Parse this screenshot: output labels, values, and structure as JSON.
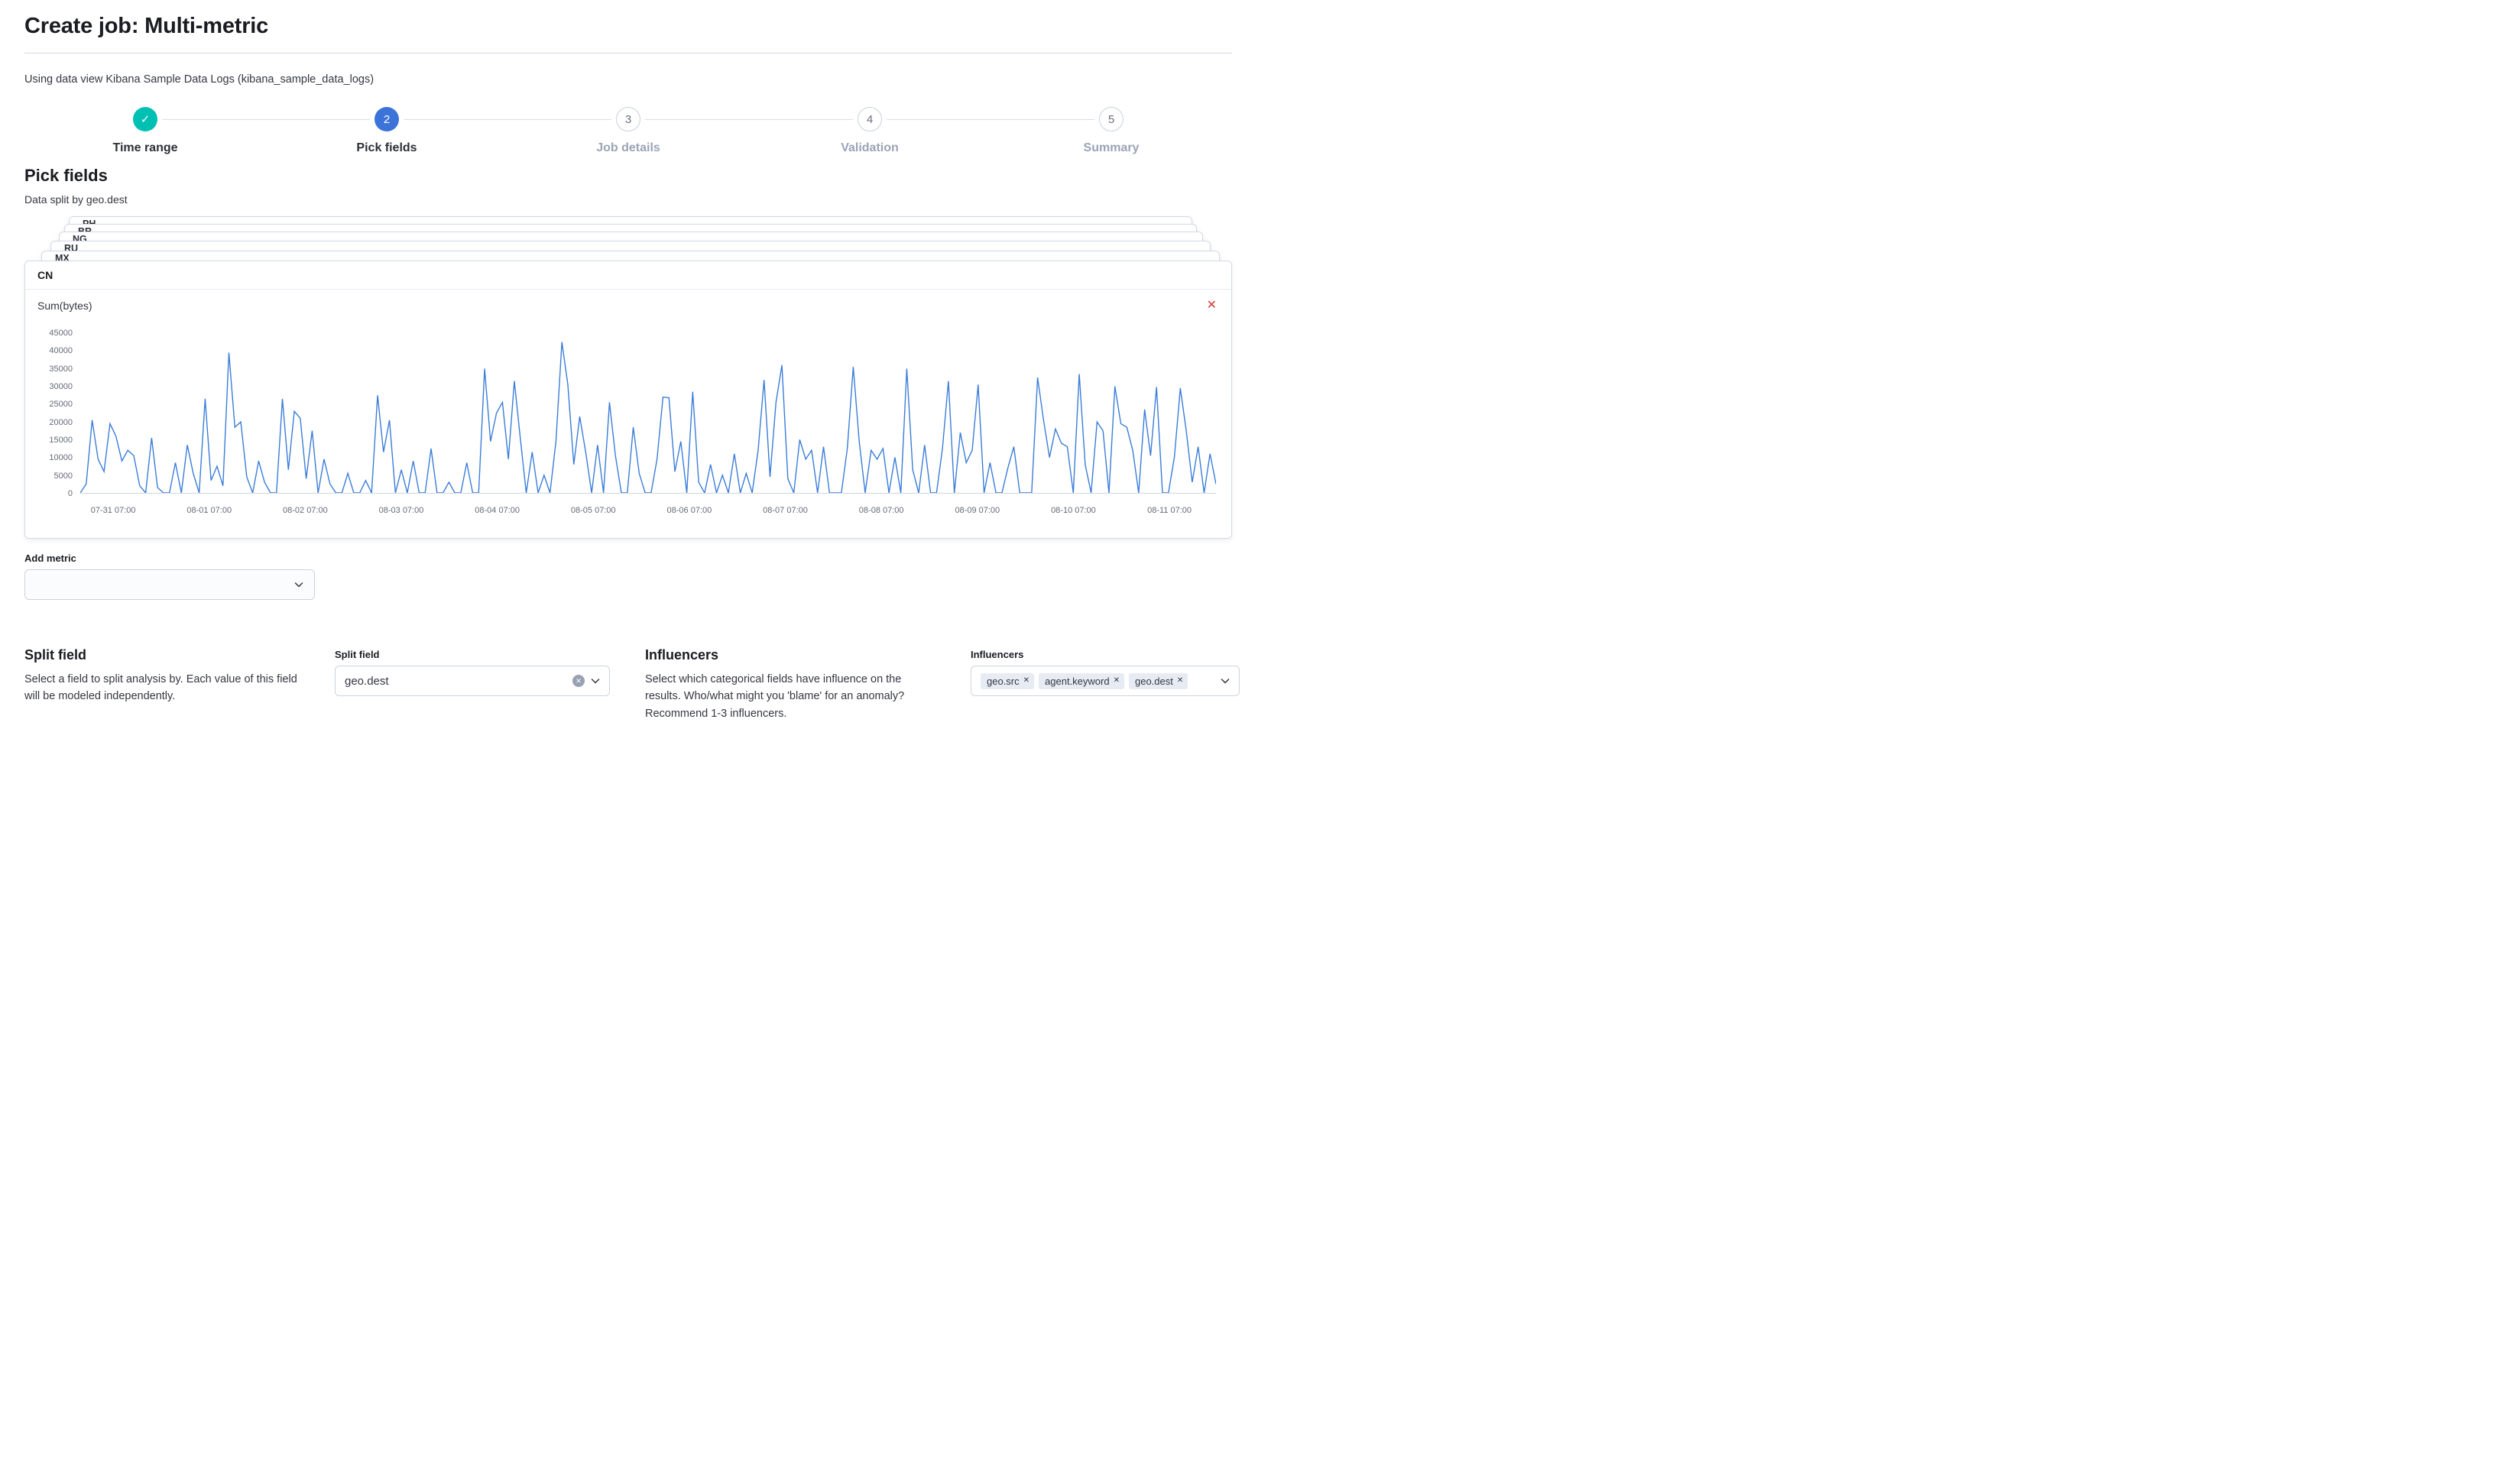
{
  "page": {
    "title": "Create job: Multi-metric",
    "data_view_line": "Using data view Kibana Sample Data Logs (kibana_sample_data_logs)"
  },
  "stepper": {
    "steps": [
      {
        "label": "Time range",
        "state": "complete"
      },
      {
        "label": "Pick fields",
        "state": "current",
        "number": "2"
      },
      {
        "label": "Job details",
        "state": "upcoming",
        "number": "3"
      },
      {
        "label": "Validation",
        "state": "upcoming",
        "number": "4"
      },
      {
        "label": "Summary",
        "state": "upcoming",
        "number": "5"
      }
    ]
  },
  "pick_fields": {
    "heading": "Pick fields",
    "split_caption": "Data split by geo.dest",
    "back_cards": [
      "PH",
      "BR",
      "NG",
      "RU",
      "MX"
    ],
    "front_card": {
      "label": "CN",
      "metric_label": "Sum(bytes)"
    }
  },
  "add_metric": {
    "label": "Add metric",
    "value": ""
  },
  "split_field": {
    "heading": "Split field",
    "description": "Select a field to split analysis by. Each value of this field will be modeled independently.",
    "input_label": "Split field",
    "value": "geo.dest"
  },
  "influencers": {
    "heading": "Influencers",
    "description": "Select which categorical fields have influence on the results. Who/what might you 'blame' for an anomaly? Recommend 1-3 influencers.",
    "input_label": "Influencers",
    "selected": [
      "geo.src",
      "agent.keyword",
      "geo.dest"
    ]
  },
  "colors": {
    "primary": "#3b73d8",
    "success": "#00bfb3",
    "danger": "#d23f31",
    "chart_line": "#3b7dd8",
    "text": "#343741",
    "text_subdued": "#69707d",
    "border": "#d3dae6"
  },
  "chart_data": {
    "type": "line",
    "title": "CN — Sum(bytes)",
    "xlabel": "",
    "ylabel": "",
    "ylim": [
      0,
      45000
    ],
    "grid": false,
    "legend": false,
    "yticks": [
      0,
      5000,
      10000,
      15000,
      20000,
      25000,
      30000,
      35000,
      40000,
      45000
    ],
    "x_labels": [
      "07-31 07:00",
      "08-01 07:00",
      "08-02 07:00",
      "08-03 07:00",
      "08-04 07:00",
      "08-05 07:00",
      "08-06 07:00",
      "08-07 07:00",
      "08-08 07:00",
      "08-09 07:00",
      "08-10 07:00",
      "08-11 07:00"
    ],
    "series": [
      {
        "name": "Sum(bytes)",
        "values": [
          0,
          2500,
          20500,
          9500,
          6000,
          19500,
          16000,
          9000,
          12000,
          10500,
          2000,
          0,
          15500,
          1500,
          0,
          0,
          8500,
          0,
          13500,
          5500,
          0,
          26500,
          3500,
          7500,
          2000,
          39500,
          18500,
          20000,
          4500,
          0,
          9000,
          3000,
          0,
          0,
          26500,
          6500,
          23000,
          21000,
          4000,
          17500,
          0,
          9500,
          2500,
          0,
          0,
          5500,
          0,
          0,
          3500,
          0,
          27500,
          11500,
          20500,
          0,
          6500,
          0,
          9000,
          0,
          0,
          12500,
          0,
          0,
          3000,
          0,
          0,
          8500,
          0,
          0,
          35000,
          14500,
          22500,
          25500,
          9500,
          31500,
          15500,
          0,
          11500,
          0,
          5000,
          0,
          14500,
          42500,
          30500,
          8000,
          21500,
          11500,
          0,
          13500,
          0,
          25500,
          10500,
          0,
          0,
          18500,
          5500,
          0,
          0,
          9500,
          27000,
          26800,
          6000,
          14500,
          0,
          28500,
          3000,
          0,
          8000,
          0,
          5000,
          0,
          11000,
          0,
          5500,
          0,
          12000,
          31800,
          4500,
          25500,
          36000,
          4000,
          0,
          15000,
          9500,
          12000,
          0,
          13000,
          0,
          0,
          0,
          12500,
          35500,
          14500,
          0,
          12000,
          9500,
          12500,
          0,
          10000,
          0,
          35000,
          6500,
          0,
          13500,
          0,
          0,
          12500,
          31500,
          0,
          17000,
          8500,
          12000,
          30500,
          0,
          8500,
          0,
          0,
          7000,
          13000,
          0,
          0,
          0,
          32500,
          20500,
          10000,
          18000,
          14000,
          13000,
          0,
          33500,
          8000,
          0,
          20000,
          17500,
          0,
          30000,
          19500,
          18500,
          12000,
          0,
          23500,
          10500,
          29800,
          0,
          0,
          10000,
          29500,
          17500,
          3000,
          13000,
          0,
          11000,
          2500
        ]
      }
    ]
  }
}
